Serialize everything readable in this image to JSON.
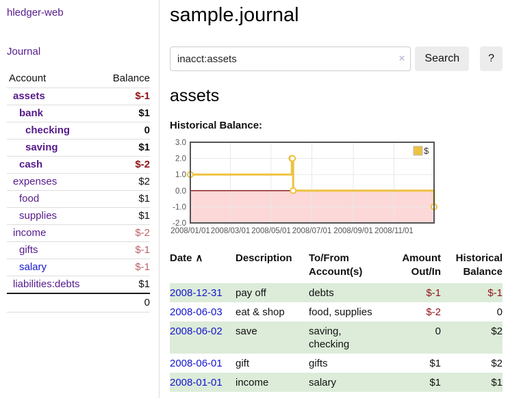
{
  "app": {
    "brand": "hledger-web",
    "nav_journal": "Journal"
  },
  "sidebar": {
    "headers": {
      "account": "Account",
      "balance": "Balance"
    },
    "accounts": [
      {
        "name": "assets",
        "level": 1,
        "active": true,
        "balance": "$-1"
      },
      {
        "name": "bank",
        "level": 2,
        "active": true,
        "balance": "$1"
      },
      {
        "name": "checking",
        "level": 3,
        "active": true,
        "balance": "0"
      },
      {
        "name": "saving",
        "level": 3,
        "active": true,
        "balance": "$1"
      },
      {
        "name": "cash",
        "level": 2,
        "active": true,
        "balance": "$-2"
      },
      {
        "name": "expenses",
        "level": 1,
        "active": false,
        "balance": "$2"
      },
      {
        "name": "food",
        "level": 2,
        "active": false,
        "balance": "$1"
      },
      {
        "name": "supplies",
        "level": 2,
        "active": false,
        "balance": "$1"
      },
      {
        "name": "income",
        "level": 1,
        "active": false,
        "balance": "$-2"
      },
      {
        "name": "gifts",
        "level": 2,
        "active": false,
        "balance": "$-1"
      },
      {
        "name": "salary",
        "level": 2,
        "active": false,
        "unvisited": true,
        "balance": "$-1"
      },
      {
        "name": "liabilities:debts",
        "level": 1,
        "active": false,
        "balance": "$1"
      }
    ],
    "total": "0"
  },
  "main": {
    "title": "sample.journal",
    "search": {
      "value": "inacct:assets",
      "clear_icon": "×",
      "button_label": "Search",
      "help_label": "?"
    },
    "account_heading": "assets"
  },
  "chart_data": {
    "type": "line",
    "title": "Historical Balance:",
    "xlim": [
      "2008-01-01",
      "2008-12-31"
    ],
    "ylim": [
      -2,
      3
    ],
    "y_ticks": [
      3.0,
      2.0,
      1.0,
      0.0,
      -1.0,
      -2.0
    ],
    "x_ticks": [
      "2008/01/01",
      "2008/03/01",
      "2008/05/01",
      "2008/07/01",
      "2008/09/01",
      "2008/11/01"
    ],
    "series": [
      {
        "name": "$",
        "color": "#edc240",
        "steps": true,
        "points": [
          [
            "2008-01-01",
            1
          ],
          [
            "2008-06-01",
            2
          ],
          [
            "2008-06-02",
            2
          ],
          [
            "2008-06-03",
            0
          ],
          [
            "2008-12-31",
            -1
          ]
        ]
      }
    ],
    "legend": {
      "label": "$",
      "position": "top-right"
    },
    "negative_region_color": "#fcd8d8",
    "zero_line_color": "#882222",
    "grid": true
  },
  "register": {
    "headers": {
      "date": "Date",
      "sort_icon": "∧",
      "description": "Description",
      "accounts": "To/From Account(s)",
      "amount": "Amount Out/In",
      "balance": "Historical Balance"
    },
    "rows": [
      {
        "date": "2008-12-31",
        "description": "pay off",
        "accounts": "debts",
        "amount": "$-1",
        "balance": "$-1"
      },
      {
        "date": "2008-06-03",
        "description": "eat & shop",
        "accounts": "food, supplies",
        "amount": "$-2",
        "balance": "0"
      },
      {
        "date": "2008-06-02",
        "description": "save",
        "accounts": "saving, checking",
        "amount": "0",
        "balance": "$2"
      },
      {
        "date": "2008-06-01",
        "description": "gift",
        "accounts": "gifts",
        "amount": "$1",
        "balance": "$2"
      },
      {
        "date": "2008-01-01",
        "description": "income",
        "accounts": "salary",
        "amount": "$1",
        "balance": "$1"
      }
    ]
  },
  "colors": {
    "link_visited_purple": "#551a8b",
    "link_blue": "#1414cf",
    "negative_strong": "#8f1216",
    "negative_muted": "#bd6067",
    "row_stripe_green": "#dcecd9",
    "series_gold": "#edc240"
  }
}
